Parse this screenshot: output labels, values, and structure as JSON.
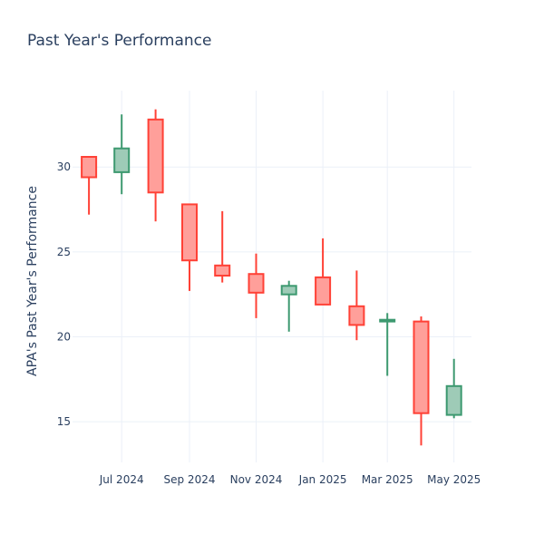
{
  "chart_data": {
    "type": "candlestick",
    "title": "Past Year's Performance",
    "ylabel": "APA's Past Year's Performance",
    "xlabel": "",
    "ylim": [
      12.6,
      34.5
    ],
    "xlim": [
      "2024-05-17",
      "2025-05-17"
    ],
    "grid": true,
    "colors": {
      "increasing": "#3d9970",
      "increasing_fill": "#9ecbb7",
      "decreasing": "#ff4136",
      "decreasing_fill": "#ff9f9a"
    },
    "y_ticks": [
      15,
      20,
      25,
      30
    ],
    "y_tick_labels": [
      "15",
      "20",
      "25",
      "30"
    ],
    "x_ticks": [
      "2024-07-01",
      "2024-09-01",
      "2024-11-01",
      "2025-01-01",
      "2025-03-01",
      "2025-05-01"
    ],
    "x_tick_labels": [
      "Jul 2024",
      "Sep 2024",
      "Nov 2024",
      "Jan 2025",
      "Mar 2025",
      "May 2025"
    ],
    "candles": [
      {
        "date": "2024-06-01",
        "open": 30.6,
        "high": 30.6,
        "low": 27.2,
        "close": 29.4
      },
      {
        "date": "2024-07-01",
        "open": 29.7,
        "high": 33.1,
        "low": 28.4,
        "close": 31.1
      },
      {
        "date": "2024-08-01",
        "open": 32.8,
        "high": 33.4,
        "low": 26.8,
        "close": 28.5
      },
      {
        "date": "2024-09-01",
        "open": 27.8,
        "high": 27.8,
        "low": 22.7,
        "close": 24.5
      },
      {
        "date": "2024-10-01",
        "open": 24.2,
        "high": 27.4,
        "low": 23.2,
        "close": 23.6
      },
      {
        "date": "2024-11-01",
        "open": 23.7,
        "high": 24.9,
        "low": 21.1,
        "close": 22.6
      },
      {
        "date": "2024-12-01",
        "open": 22.5,
        "high": 23.3,
        "low": 20.3,
        "close": 23.0
      },
      {
        "date": "2025-01-01",
        "open": 23.5,
        "high": 25.8,
        "low": 21.9,
        "close": 21.9
      },
      {
        "date": "2025-02-01",
        "open": 21.8,
        "high": 23.9,
        "low": 19.8,
        "close": 20.7
      },
      {
        "date": "2025-03-01",
        "open": 20.9,
        "high": 21.4,
        "low": 17.7,
        "close": 21.0
      },
      {
        "date": "2025-04-01",
        "open": 20.9,
        "high": 21.2,
        "low": 13.6,
        "close": 15.5
      },
      {
        "date": "2025-05-01",
        "open": 15.4,
        "high": 18.7,
        "low": 15.2,
        "close": 17.1
      }
    ]
  }
}
